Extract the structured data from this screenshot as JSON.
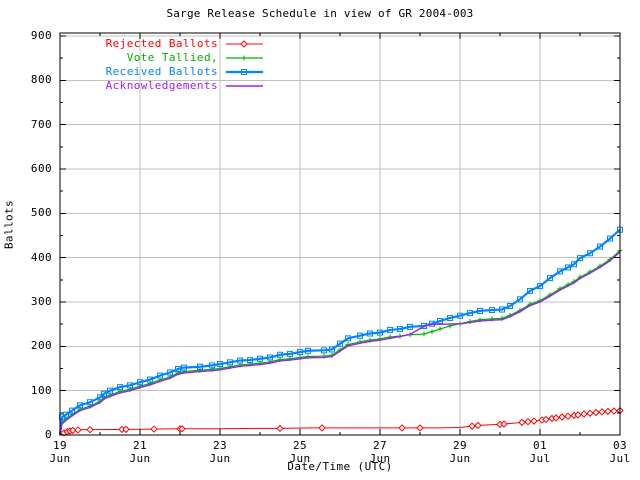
{
  "chart_data": {
    "type": "line",
    "title": "Sarge Release Schedule in view of GR 2004-003",
    "xlabel": "Date/Time (UTC)",
    "ylabel": "Ballots",
    "ylim": [
      0,
      900
    ],
    "grid": true,
    "legend_position": "top-left-inside",
    "colors": {
      "rejected": "#ff0000",
      "tallied": "#00b000",
      "received": "#0084ff",
      "acknowledgements": "#a020f0",
      "grid": "#c0c0c0",
      "border": "#000000",
      "background": "#ffffff"
    },
    "y_ticks": [
      {
        "v": 0,
        "label": "0"
      },
      {
        "v": 100,
        "label": "100"
      },
      {
        "v": 200,
        "label": "200"
      },
      {
        "v": 300,
        "label": "300"
      },
      {
        "v": 400,
        "label": "400"
      },
      {
        "v": 500,
        "label": "500"
      },
      {
        "v": 600,
        "label": "600"
      },
      {
        "v": 700,
        "label": "700"
      },
      {
        "v": 800,
        "label": "800"
      },
      {
        "v": 900,
        "label": "900"
      }
    ],
    "y_minor_values": [
      50,
      150,
      250,
      350,
      450,
      550,
      650,
      750,
      850
    ],
    "x_ticks": [
      {
        "day": 0,
        "l1": "19",
        "l2": "Jun"
      },
      {
        "day": 2,
        "l1": "21",
        "l2": "Jun"
      },
      {
        "day": 4,
        "l1": "23",
        "l2": "Jun"
      },
      {
        "day": 6,
        "l1": "25",
        "l2": "Jun"
      },
      {
        "day": 8,
        "l1": "27",
        "l2": "Jun"
      },
      {
        "day": 10,
        "l1": "29",
        "l2": "Jun"
      },
      {
        "day": 12,
        "l1": "01",
        "l2": "Jul"
      },
      {
        "day": 14,
        "l1": "03",
        "l2": "Jul"
      }
    ],
    "x_minor_days": [
      1,
      3,
      5,
      7,
      9,
      11,
      13
    ],
    "x_grid_days": [
      2,
      4,
      6,
      8,
      10,
      12
    ],
    "series": [
      {
        "name": "Rejected Ballots",
        "color": "#ff0000",
        "marker": "diamond",
        "line_width": 1,
        "markers_every_point": false,
        "marker_days": [
          0.1,
          0.18,
          0.25,
          0.32,
          0.45,
          0.75,
          1.55,
          1.65,
          2.35,
          3,
          3.05,
          5.5,
          6.55,
          8.55,
          9,
          10.3,
          10.45,
          11,
          11.1,
          11.55,
          11.7,
          11.85,
          12.05,
          12.15,
          12.3,
          12.4,
          12.55,
          12.7,
          12.85,
          12.95,
          13.1,
          13.25,
          13.4,
          13.55,
          13.7,
          13.85,
          14
        ],
        "points": [
          [
            0,
            0
          ],
          [
            0.08,
            4
          ],
          [
            0.2,
            8
          ],
          [
            0.35,
            11
          ],
          [
            0.6,
            12
          ],
          [
            1,
            12
          ],
          [
            2,
            13
          ],
          [
            3,
            14
          ],
          [
            4,
            14
          ],
          [
            5,
            15
          ],
          [
            5.5,
            15
          ],
          [
            6.3,
            16
          ],
          [
            8,
            16
          ],
          [
            9.5,
            16
          ],
          [
            10,
            17
          ],
          [
            10.3,
            20
          ],
          [
            10.5,
            22
          ],
          [
            11,
            24
          ],
          [
            11.5,
            28
          ],
          [
            12,
            33
          ],
          [
            12.5,
            40
          ],
          [
            13,
            46
          ],
          [
            13.5,
            52
          ],
          [
            14,
            55
          ]
        ]
      },
      {
        "name": "Vote Tallied,",
        "color": "#00b000",
        "marker": "plus",
        "line_width": 1.2,
        "markers_every_point": true,
        "marker_days": [],
        "points": [
          [
            0,
            0
          ],
          [
            0.05,
            28
          ],
          [
            0.15,
            36
          ],
          [
            0.3,
            46
          ],
          [
            0.5,
            58
          ],
          [
            0.75,
            65
          ],
          [
            1,
            76
          ],
          [
            1.1,
            84
          ],
          [
            1.25,
            90
          ],
          [
            1.5,
            98
          ],
          [
            1.75,
            103
          ],
          [
            2,
            110
          ],
          [
            2.25,
            116
          ],
          [
            2.5,
            124
          ],
          [
            2.75,
            131
          ],
          [
            2.95,
            140
          ],
          [
            3.1,
            143
          ],
          [
            3.5,
            146
          ],
          [
            3.8,
            148
          ],
          [
            4,
            150
          ],
          [
            4.25,
            154
          ],
          [
            4.5,
            158
          ],
          [
            4.75,
            160
          ],
          [
            5,
            162
          ],
          [
            5.25,
            165
          ],
          [
            5.5,
            170
          ],
          [
            5.75,
            172
          ],
          [
            6,
            175
          ],
          [
            6.2,
            177
          ],
          [
            6.6,
            178
          ],
          [
            6.8,
            180
          ],
          [
            7,
            192
          ],
          [
            7.2,
            204
          ],
          [
            7.5,
            210
          ],
          [
            7.75,
            214
          ],
          [
            8,
            217
          ],
          [
            8.25,
            221
          ],
          [
            8.5,
            223
          ],
          [
            8.75,
            226
          ],
          [
            9.1,
            228
          ],
          [
            9.3,
            233
          ],
          [
            9.5,
            239
          ],
          [
            9.75,
            246
          ],
          [
            10,
            251
          ],
          [
            10.25,
            256
          ],
          [
            10.5,
            260
          ],
          [
            10.8,
            262
          ],
          [
            11.05,
            263
          ],
          [
            11.25,
            270
          ],
          [
            11.5,
            281
          ],
          [
            11.75,
            295
          ],
          [
            12,
            303
          ],
          [
            12.25,
            316
          ],
          [
            12.5,
            330
          ],
          [
            12.7,
            339
          ],
          [
            12.85,
            346
          ],
          [
            13,
            356
          ],
          [
            13.25,
            368
          ],
          [
            13.5,
            381
          ],
          [
            13.75,
            396
          ],
          [
            14,
            416
          ]
        ]
      },
      {
        "name": "Received Ballots",
        "color": "#0084ff",
        "marker": "square",
        "line_width": 2.2,
        "markers_every_point": true,
        "marker_days": [],
        "points": [
          [
            0,
            0
          ],
          [
            0.05,
            40
          ],
          [
            0.15,
            46
          ],
          [
            0.3,
            55
          ],
          [
            0.5,
            67
          ],
          [
            0.75,
            74
          ],
          [
            1,
            85
          ],
          [
            1.1,
            93
          ],
          [
            1.25,
            100
          ],
          [
            1.5,
            108
          ],
          [
            1.75,
            112
          ],
          [
            2,
            119
          ],
          [
            2.25,
            125
          ],
          [
            2.5,
            134
          ],
          [
            2.75,
            141
          ],
          [
            2.95,
            149
          ],
          [
            3.1,
            152
          ],
          [
            3.5,
            154
          ],
          [
            3.8,
            157
          ],
          [
            4,
            160
          ],
          [
            4.25,
            164
          ],
          [
            4.5,
            168
          ],
          [
            4.75,
            169
          ],
          [
            5,
            172
          ],
          [
            5.25,
            175
          ],
          [
            5.5,
            181
          ],
          [
            5.75,
            183
          ],
          [
            6,
            187
          ],
          [
            6.2,
            190
          ],
          [
            6.6,
            191
          ],
          [
            6.8,
            193
          ],
          [
            7,
            206
          ],
          [
            7.2,
            218
          ],
          [
            7.5,
            224
          ],
          [
            7.75,
            229
          ],
          [
            8,
            231
          ],
          [
            8.25,
            237
          ],
          [
            8.5,
            239
          ],
          [
            8.75,
            244
          ],
          [
            9.1,
            246
          ],
          [
            9.3,
            251
          ],
          [
            9.5,
            257
          ],
          [
            9.75,
            264
          ],
          [
            10,
            269
          ],
          [
            10.25,
            275
          ],
          [
            10.5,
            280
          ],
          [
            10.8,
            282
          ],
          [
            11.05,
            283
          ],
          [
            11.25,
            291
          ],
          [
            11.5,
            306
          ],
          [
            11.75,
            325
          ],
          [
            12,
            336
          ],
          [
            12.25,
            354
          ],
          [
            12.5,
            369
          ],
          [
            12.7,
            378
          ],
          [
            12.85,
            385
          ],
          [
            13,
            399
          ],
          [
            13.25,
            410
          ],
          [
            13.5,
            425
          ],
          [
            13.75,
            443
          ],
          [
            14,
            463
          ]
        ]
      },
      {
        "name": "Acknowledgements",
        "color": "#a020f0",
        "marker": "none",
        "line_width": 1.4,
        "markers_every_point": false,
        "marker_days": [],
        "points": [
          [
            0,
            0
          ],
          [
            0.05,
            25
          ],
          [
            0.15,
            33
          ],
          [
            0.3,
            43
          ],
          [
            0.5,
            55
          ],
          [
            0.75,
            62
          ],
          [
            1,
            73
          ],
          [
            1.1,
            81
          ],
          [
            1.25,
            87
          ],
          [
            1.5,
            95
          ],
          [
            1.75,
            100
          ],
          [
            2,
            107
          ],
          [
            2.25,
            113
          ],
          [
            2.5,
            121
          ],
          [
            2.75,
            128
          ],
          [
            2.95,
            137
          ],
          [
            3.1,
            140
          ],
          [
            3.5,
            143
          ],
          [
            3.8,
            145
          ],
          [
            4,
            147
          ],
          [
            4.25,
            151
          ],
          [
            4.5,
            155
          ],
          [
            4.75,
            157
          ],
          [
            5,
            159
          ],
          [
            5.25,
            162
          ],
          [
            5.5,
            167
          ],
          [
            5.75,
            169
          ],
          [
            6,
            172
          ],
          [
            6.2,
            174
          ],
          [
            6.6,
            175
          ],
          [
            6.8,
            177
          ],
          [
            7,
            189
          ],
          [
            7.2,
            201
          ],
          [
            7.5,
            207
          ],
          [
            7.75,
            211
          ],
          [
            8,
            214
          ],
          [
            8.25,
            218
          ],
          [
            8.5,
            222
          ],
          [
            8.75,
            227
          ],
          [
            9,
            240
          ],
          [
            9.2,
            249
          ],
          [
            10.05,
            251
          ],
          [
            10.25,
            254
          ],
          [
            10.5,
            257
          ],
          [
            10.8,
            259
          ],
          [
            11.05,
            260
          ],
          [
            11.25,
            267
          ],
          [
            11.5,
            278
          ],
          [
            11.75,
            292
          ],
          [
            12,
            300
          ],
          [
            12.25,
            313
          ],
          [
            12.5,
            327
          ],
          [
            12.7,
            336
          ],
          [
            12.85,
            343
          ],
          [
            13,
            353
          ],
          [
            13.25,
            365
          ],
          [
            13.5,
            378
          ],
          [
            13.75,
            393
          ],
          [
            14,
            413
          ]
        ]
      }
    ]
  }
}
